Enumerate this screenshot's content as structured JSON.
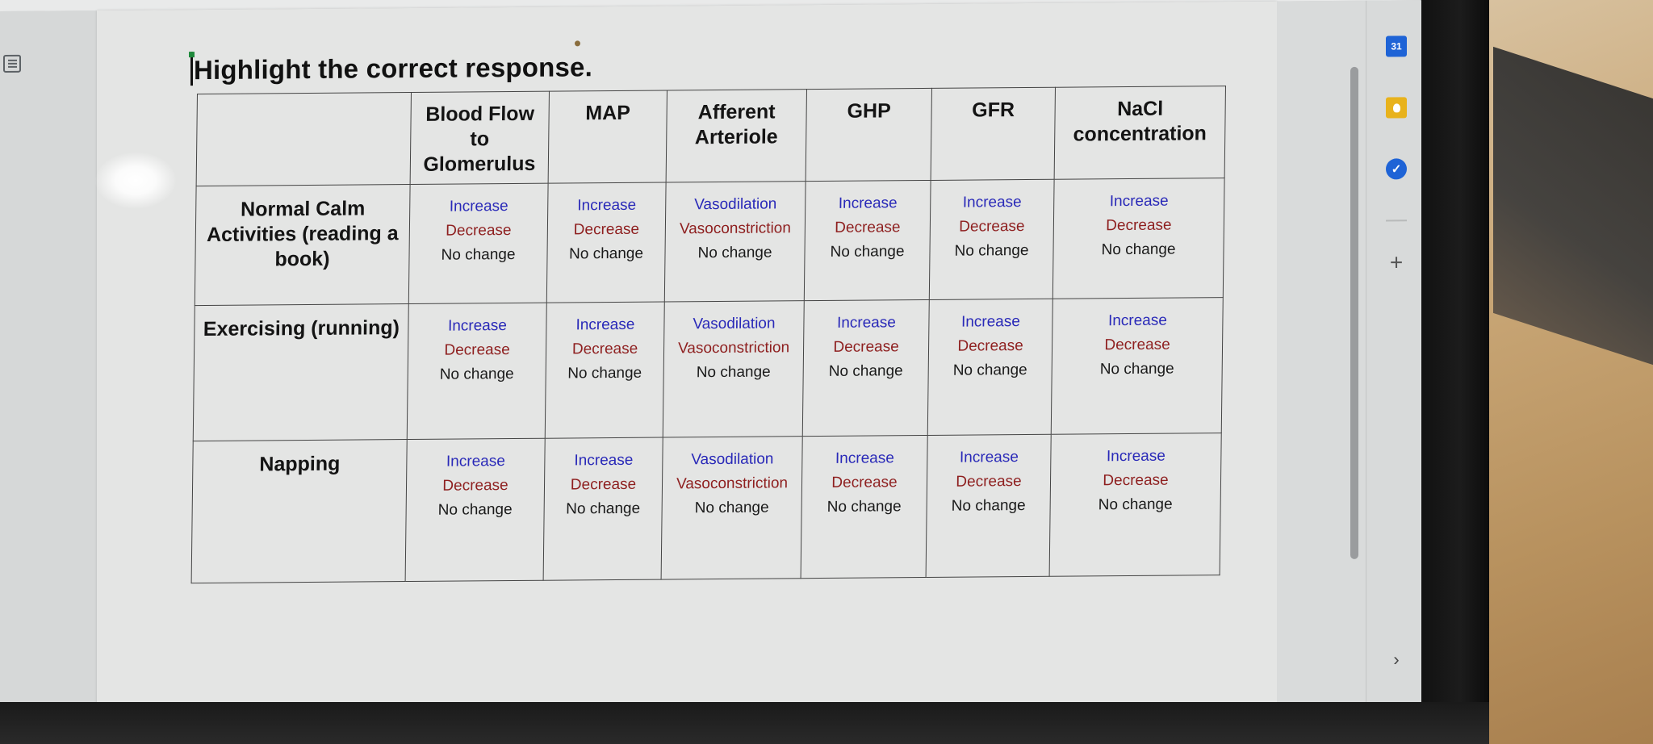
{
  "document": {
    "heading": "Highlight the correct response."
  },
  "table": {
    "columns": [
      "",
      "Blood Flow to Glomerulus",
      "MAP",
      "Afferent Arteriole",
      "GHP",
      "GFR",
      "NaCl concentration"
    ],
    "rows": [
      {
        "label": "Normal Calm Activities (reading a book)",
        "cells": [
          [
            "Increase",
            "Decrease",
            "No change"
          ],
          [
            "Increase",
            "Decrease",
            "No change"
          ],
          [
            "Vasodilation",
            "Vasoconstriction",
            "No change"
          ],
          [
            "Increase",
            "Decrease",
            "No change"
          ],
          [
            "Increase",
            "Decrease",
            "No change"
          ],
          [
            "Increase",
            "Decrease",
            "No change"
          ]
        ]
      },
      {
        "label": "Exercising (running)",
        "cells": [
          [
            "Increase",
            "Decrease",
            "No change"
          ],
          [
            "Increase",
            "Decrease",
            "No change"
          ],
          [
            "Vasodilation",
            "Vasoconstriction",
            "No change"
          ],
          [
            "Increase",
            "Decrease",
            "No change"
          ],
          [
            "Increase",
            "Decrease",
            "No change"
          ],
          [
            "Increase",
            "Decrease",
            "No change"
          ]
        ]
      },
      {
        "label": "Napping",
        "cells": [
          [
            "Increase",
            "Decrease",
            "No change"
          ],
          [
            "Increase",
            "Decrease",
            "No change"
          ],
          [
            "Vasodilation",
            "Vasoconstriction",
            "No change"
          ],
          [
            "Increase",
            "Decrease",
            "No change"
          ],
          [
            "Increase",
            "Decrease",
            "No change"
          ],
          [
            "Increase",
            "Decrease",
            "No change"
          ]
        ]
      }
    ]
  },
  "side_panel": {
    "calendar_day": "31",
    "icons": [
      "calendar-icon",
      "keep-icon",
      "tasks-icon",
      "plus-icon",
      "chevron-right-icon"
    ]
  },
  "colors": {
    "increase": "#2929b8",
    "decrease": "#8e1f1f",
    "no_change": "#1a1a1a",
    "calendar": "#1e63d6",
    "keep": "#e8b21c"
  }
}
